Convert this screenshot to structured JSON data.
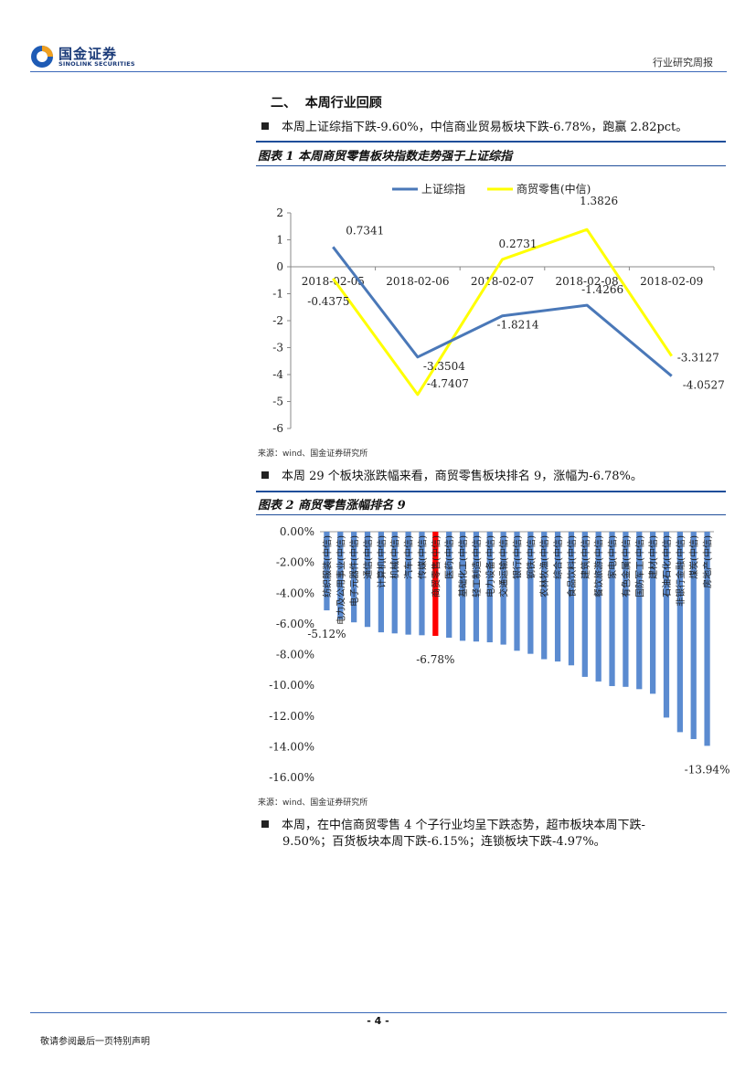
{
  "header": {
    "logo_cn": "国金证券",
    "logo_en": "SINOLINK SECURITIES",
    "report_type": "行业研究周报"
  },
  "section": {
    "title": "二、  本周行业回顾",
    "bullet1": "本周上证综指下跌-9.60%，中信商业贸易板块下跌-6.78%，跑赢 2.82pct。",
    "bullet2": "本周 29 个板块涨跌幅来看，商贸零售板块排名 9，涨幅为-6.78%。",
    "bullet3_line1": "本周，在中信商贸零售 4 个子行业均呈下跌态势，超市板块本周下跌-",
    "bullet3_line2": "9.50%；百货板块本周下跌-6.15%；连锁板块下跌-4.97%。"
  },
  "figure1": {
    "title": "图表 1 本周商贸零售板块指数走势强于上证综指",
    "source": "来源：wind、国金证券研究所"
  },
  "figure2": {
    "title": "图表 2 商贸零售涨幅排名 9",
    "source": "来源：wind、国金证券研究所"
  },
  "footer": {
    "page": "- 4 -",
    "disclaimer": "敬请参阅最后一页特别声明"
  },
  "chart_data": [
    {
      "type": "line",
      "x": [
        "2018-02-05",
        "2018-02-06",
        "2018-02-07",
        "2018-02-08",
        "2018-02-09"
      ],
      "series": [
        {
          "name": "上证综指",
          "color": "#4a78b8",
          "values": [
            0.7341,
            -3.3504,
            -1.8214,
            -1.4266,
            -4.0527
          ],
          "labels": [
            "0.7341",
            "-3.3504",
            "-1.8214",
            "-1.4266",
            "-4.0527"
          ]
        },
        {
          "name": "商贸零售(中信)",
          "color": "#ffff00",
          "values": [
            -0.4375,
            -4.7407,
            0.2731,
            1.3826,
            -3.3127
          ],
          "labels": [
            "-0.4375",
            "-4.7407",
            "0.2731",
            "1.3826",
            "-3.3127"
          ]
        }
      ],
      "ylim": [
        -6,
        2
      ],
      "yticks": [
        "2",
        "1",
        "0",
        "-1",
        "-2",
        "-3",
        "-4",
        "-5",
        "-6"
      ],
      "legend": "top"
    },
    {
      "type": "bar",
      "categories": [
        "纺织服装(中信)",
        "电力及公用事业(中信)",
        "电子元器件(中信)",
        "通信(中信)",
        "计算机(中信)",
        "机械(中信)",
        "汽车(中信)",
        "传媒(中信)",
        "商贸零售(中信)",
        "医药(中信)",
        "基础化工(中信)",
        "轻工制造(中信)",
        "电力设备(中信)",
        "交通运输(中信)",
        "银行(中信)",
        "钢铁(中信)",
        "农林牧渔(中信)",
        "综合(中信)",
        "食品饮料(中信)",
        "建筑(中信)",
        "餐饮旅游(中信)",
        "家电(中信)",
        "有色金属(中信)",
        "国防军工(中信)",
        "建材(中信)",
        "石油石化(中信)",
        "非银行金融(中信)",
        "煤炭(中信)",
        "房地产(中信)"
      ],
      "values": [
        -5.12,
        -5.7,
        -5.9,
        -6.2,
        -6.55,
        -6.62,
        -6.7,
        -6.74,
        -6.78,
        -6.9,
        -7.1,
        -7.15,
        -7.2,
        -7.35,
        -7.75,
        -7.95,
        -8.3,
        -8.45,
        -8.7,
        -9.45,
        -9.75,
        -10.05,
        -10.1,
        -10.25,
        -10.55,
        -12.1,
        -13.05,
        -13.5,
        -13.94
      ],
      "highlight_index": 8,
      "highlight_color": "#ff0000",
      "bar_color": "#5b8bd0",
      "data_labels": {
        "0": "-5.12%",
        "8": "-6.78%",
        "28": "-13.94%"
      },
      "ylim": [
        -16,
        0
      ],
      "yticks": [
        "0.00%",
        "-2.00%",
        "-4.00%",
        "-6.00%",
        "-8.00%",
        "-10.00%",
        "-12.00%",
        "-14.00%",
        "-16.00%"
      ]
    }
  ]
}
